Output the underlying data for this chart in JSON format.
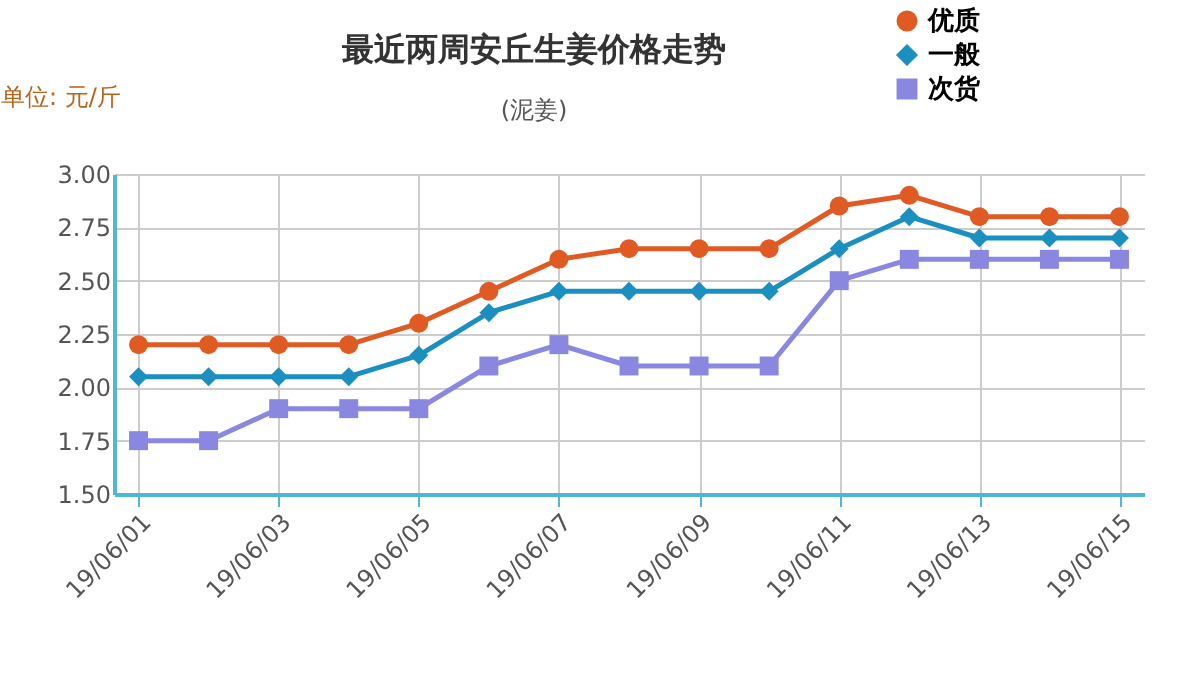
{
  "chart_data": {
    "type": "line",
    "title": "最近两周安丘生姜价格走势",
    "subtitle": "(泥姜)",
    "ylabel": "单位: 元/斤",
    "categories": [
      "19/06/01",
      null,
      "19/06/03",
      null,
      "19/06/05",
      null,
      "19/06/07",
      null,
      "19/06/09",
      null,
      "19/06/11",
      null,
      "19/06/13",
      null,
      "19/06/15"
    ],
    "series": [
      {
        "name": "优质",
        "color": "#e05a24",
        "marker": "circle",
        "values": [
          2.2,
          2.2,
          2.2,
          2.2,
          2.3,
          2.45,
          2.6,
          2.65,
          2.65,
          2.65,
          2.85,
          2.9,
          2.8,
          2.8,
          2.8
        ]
      },
      {
        "name": "一般",
        "color": "#1a8fc0",
        "marker": "diamond",
        "values": [
          2.05,
          2.05,
          2.05,
          2.05,
          2.15,
          2.35,
          2.45,
          2.45,
          2.45,
          2.45,
          2.65,
          2.8,
          2.7,
          2.7,
          2.7
        ]
      },
      {
        "name": "次货",
        "color": "#8a87e0",
        "marker": "square",
        "values": [
          1.75,
          1.75,
          1.9,
          1.9,
          1.9,
          2.1,
          2.2,
          2.1,
          2.1,
          2.1,
          2.5,
          2.6,
          2.6,
          2.6,
          2.6
        ]
      }
    ],
    "ylim": [
      1.5,
      3.0
    ],
    "yticks": [
      {
        "value": 1.5,
        "label": "1.50"
      },
      {
        "value": 1.75,
        "label": "1.75"
      },
      {
        "value": 2.0,
        "label": "2.00"
      },
      {
        "value": 2.25,
        "label": "2.25"
      },
      {
        "value": 2.5,
        "label": "2.50"
      },
      {
        "value": 2.75,
        "label": "2.75"
      },
      {
        "value": 3.0,
        "label": "3.00"
      }
    ],
    "grid": true,
    "legend": "top right",
    "line_style": "solid"
  }
}
